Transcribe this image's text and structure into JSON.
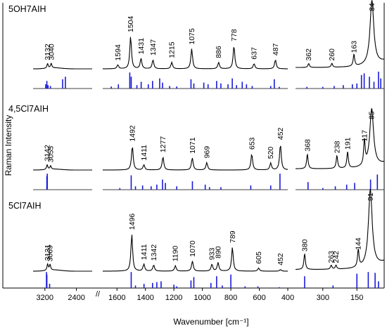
{
  "chart_data": {
    "type": "line",
    "title": "",
    "xlabel": "Wavenumber [cm⁻¹]",
    "ylabel": "Raman Intensity",
    "axis_break_label": "//",
    "grid": false,
    "legend": "none",
    "colors": {
      "experimental": "#000000",
      "calculated": "#1a1adb"
    },
    "x_segments": [
      {
        "id": "s1",
        "range": [
          3500,
          2000
        ],
        "ticks": [
          3200,
          2400
        ]
      },
      {
        "id": "s2",
        "range": [
          1700,
          400
        ],
        "ticks": [
          1600,
          1400,
          1200,
          1000,
          800,
          600,
          400
        ]
      },
      {
        "id": "s3",
        "range": [
          420,
          30
        ],
        "ticks": [
          300,
          150
        ]
      }
    ],
    "panels": [
      {
        "name": "5OH7AIH",
        "peaks": [
          {
            "x": 3132,
            "label": "3132",
            "h": 0.07
          },
          {
            "x": 3040,
            "label": "3040",
            "h": 0.07
          },
          {
            "x": 1594,
            "label": "1594",
            "h": 0.06
          },
          {
            "x": 1504,
            "label": "1504",
            "h": 0.5
          },
          {
            "x": 1431,
            "label": "1431",
            "h": 0.16
          },
          {
            "x": 1347,
            "label": "1347",
            "h": 0.14
          },
          {
            "x": 1215,
            "label": "1215",
            "h": 0.1
          },
          {
            "x": 1075,
            "label": "1075",
            "h": 0.31
          },
          {
            "x": 886,
            "label": "886",
            "h": 0.1
          },
          {
            "x": 778,
            "label": "778",
            "h": 0.36
          },
          {
            "x": 637,
            "label": "637",
            "h": 0.08
          },
          {
            "x": 487,
            "label": "487",
            "h": 0.14
          },
          {
            "x": 362,
            "label": "362",
            "h": 0.06
          },
          {
            "x": 260,
            "label": "260",
            "h": 0.06
          },
          {
            "x": 163,
            "label": "163",
            "h": 0.18
          },
          {
            "x": 84,
            "label": "84",
            "h": 1.0
          }
        ],
        "calc_sticks": [
          [
            3180,
            0.25
          ],
          [
            3150,
            0.45
          ],
          [
            3120,
            0.2
          ],
          [
            3060,
            0.15
          ],
          [
            2750,
            0.55
          ],
          [
            2680,
            0.7
          ],
          [
            1640,
            0.12
          ],
          [
            1590,
            0.25
          ],
          [
            1510,
            0.95
          ],
          [
            1500,
            0.7
          ],
          [
            1460,
            0.2
          ],
          [
            1430,
            0.4
          ],
          [
            1380,
            0.25
          ],
          [
            1350,
            0.45
          ],
          [
            1300,
            0.6
          ],
          [
            1280,
            0.35
          ],
          [
            1230,
            0.15
          ],
          [
            1180,
            0.12
          ],
          [
            1080,
            0.55
          ],
          [
            1060,
            0.3
          ],
          [
            990,
            0.35
          ],
          [
            960,
            0.25
          ],
          [
            900,
            0.45
          ],
          [
            870,
            0.3
          ],
          [
            820,
            0.25
          ],
          [
            790,
            0.6
          ],
          [
            760,
            0.2
          ],
          [
            720,
            0.4
          ],
          [
            690,
            0.25
          ],
          [
            650,
            0.15
          ],
          [
            520,
            0.15
          ],
          [
            495,
            0.55
          ],
          [
            460,
            0.1
          ],
          [
            370,
            0.1
          ],
          [
            300,
            0.1
          ],
          [
            250,
            0.15
          ],
          [
            210,
            0.2
          ],
          [
            170,
            0.25
          ],
          [
            150,
            0.3
          ],
          [
            130,
            0.8
          ],
          [
            118,
            0.9
          ],
          [
            95,
            0.7
          ],
          [
            75,
            0.4
          ],
          [
            55,
            1.0
          ],
          [
            45,
            0.6
          ]
        ]
      },
      {
        "name": "4,5Cl7AIH",
        "peaks": [
          {
            "x": 3142,
            "label": "3142",
            "h": 0.08
          },
          {
            "x": 3055,
            "label": "3055",
            "h": 0.06
          },
          {
            "x": 1492,
            "label": "1492",
            "h": 0.42
          },
          {
            "x": 1411,
            "label": "1411",
            "h": 0.09
          },
          {
            "x": 1277,
            "label": "1277",
            "h": 0.23
          },
          {
            "x": 1071,
            "label": "1071",
            "h": 0.21
          },
          {
            "x": 969,
            "label": "969",
            "h": 0.13
          },
          {
            "x": 653,
            "label": "653",
            "h": 0.28
          },
          {
            "x": 520,
            "label": "520",
            "h": 0.12
          },
          {
            "x": 452,
            "label": "452",
            "h": 0.45
          },
          {
            "x": 368,
            "label": "368",
            "h": 0.25
          },
          {
            "x": 238,
            "label": "238",
            "h": 0.22
          },
          {
            "x": 191,
            "label": "191",
            "h": 0.28
          },
          {
            "x": 117,
            "label": "117",
            "h": 0.42
          },
          {
            "x": 85,
            "label": "85",
            "h": 1.0
          }
        ],
        "calc_sticks": [
          [
            3150,
            0.8
          ],
          [
            3140,
            0.95
          ],
          [
            1580,
            0.1
          ],
          [
            1500,
            0.85
          ],
          [
            1470,
            0.2
          ],
          [
            1420,
            0.25
          ],
          [
            1360,
            0.2
          ],
          [
            1320,
            0.3
          ],
          [
            1280,
            0.6
          ],
          [
            1260,
            0.4
          ],
          [
            1180,
            0.2
          ],
          [
            1070,
            0.5
          ],
          [
            980,
            0.3
          ],
          [
            950,
            0.15
          ],
          [
            870,
            0.15
          ],
          [
            660,
            0.25
          ],
          [
            520,
            0.25
          ],
          [
            455,
            0.95
          ],
          [
            365,
            0.45
          ],
          [
            300,
            0.1
          ],
          [
            245,
            0.2
          ],
          [
            195,
            0.3
          ],
          [
            160,
            0.4
          ],
          [
            90,
            0.6
          ],
          [
            60,
            0.9
          ]
        ]
      },
      {
        "name": "5Cl7AIH",
        "peaks": [
          {
            "x": 3131,
            "label": "3131",
            "h": 0.08
          },
          {
            "x": 3069,
            "label": "3069",
            "h": 0.07
          },
          {
            "x": 1496,
            "label": "1496",
            "h": 0.48
          },
          {
            "x": 1411,
            "label": "1411",
            "h": 0.09
          },
          {
            "x": 1342,
            "label": "1342",
            "h": 0.08
          },
          {
            "x": 1190,
            "label": "1190",
            "h": 0.07
          },
          {
            "x": 1070,
            "label": "1070",
            "h": 0.13
          },
          {
            "x": 933,
            "label": "933",
            "h": 0.09
          },
          {
            "x": 890,
            "label": "890",
            "h": 0.11
          },
          {
            "x": 789,
            "label": "789",
            "h": 0.31
          },
          {
            "x": 605,
            "label": "605",
            "h": 0.04
          },
          {
            "x": 452,
            "label": "452",
            "h": 0.02
          },
          {
            "x": 380,
            "label": "380",
            "h": 0.2
          },
          {
            "x": 263,
            "label": "263",
            "h": 0.05
          },
          {
            "x": 242,
            "label": "242",
            "h": 0.05
          },
          {
            "x": 144,
            "label": "144",
            "h": 0.22
          },
          {
            "x": 91,
            "label": "91",
            "h": 1.0
          }
        ],
        "calc_sticks": [
          [
            3160,
            0.95
          ],
          [
            3150,
            0.8
          ],
          [
            3080,
            0.25
          ],
          [
            1500,
            0.95
          ],
          [
            1470,
            0.15
          ],
          [
            1410,
            0.25
          ],
          [
            1350,
            0.3
          ],
          [
            1320,
            0.35
          ],
          [
            1290,
            0.4
          ],
          [
            1200,
            0.2
          ],
          [
            1180,
            0.1
          ],
          [
            1080,
            0.45
          ],
          [
            1060,
            0.65
          ],
          [
            940,
            0.3
          ],
          [
            900,
            0.7
          ],
          [
            860,
            0.15
          ],
          [
            800,
            0.8
          ],
          [
            700,
            0.1
          ],
          [
            610,
            0.1
          ],
          [
            460,
            0.05
          ],
          [
            380,
            0.7
          ],
          [
            255,
            0.15
          ],
          [
            150,
            0.85
          ],
          [
            100,
            0.95
          ],
          [
            70,
            0.9
          ],
          [
            55,
            0.4
          ]
        ]
      }
    ]
  }
}
